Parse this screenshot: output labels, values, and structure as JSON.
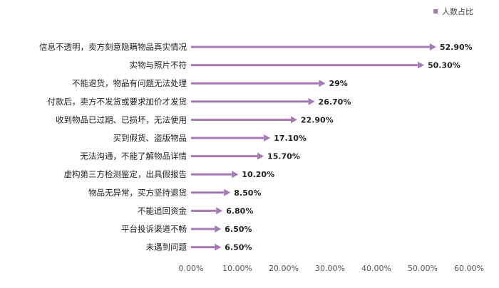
{
  "chart_data": {
    "type": "bar",
    "orientation": "horizontal",
    "legend": {
      "label": "人数占比",
      "position": "top-right"
    },
    "categories": [
      "信息不透明，卖方刻意隐瞒物品真实情况",
      "实物与照片不符",
      "不能退货，物品有问题无法处理",
      "付款后，卖方不发货或要求加价才发货",
      "收到物品已过期、已损坏，无法使用",
      "买到假货、盗版物品",
      "无法沟通，不能了解物品详情",
      "虚构第三方检测鉴定，出具假报告",
      "物品无异常，买方坚持退货",
      "不能追回资金",
      "平台投诉渠道不畅",
      "未遇到问题"
    ],
    "values": [
      52.9,
      50.3,
      29,
      26.7,
      22.9,
      17.1,
      15.7,
      10.2,
      8.5,
      6.8,
      6.5,
      6.5
    ],
    "value_labels": [
      "52.90%",
      "50.30%",
      "29%",
      "26.70%",
      "22.90%",
      "17.10%",
      "15.70%",
      "10.20%",
      "8.50%",
      "6.80%",
      "6.50%",
      "6.50%"
    ],
    "xlim": [
      0,
      60
    ],
    "x_ticks": [
      "0.00%",
      "10.00%",
      "20.00%",
      "30.00%",
      "40.00%",
      "50.00%",
      "60.00%"
    ],
    "grid": false,
    "colors": {
      "bar": "#a678b4",
      "text": "#222222",
      "tick": "#555555",
      "axis": "#bfbfbf"
    }
  }
}
